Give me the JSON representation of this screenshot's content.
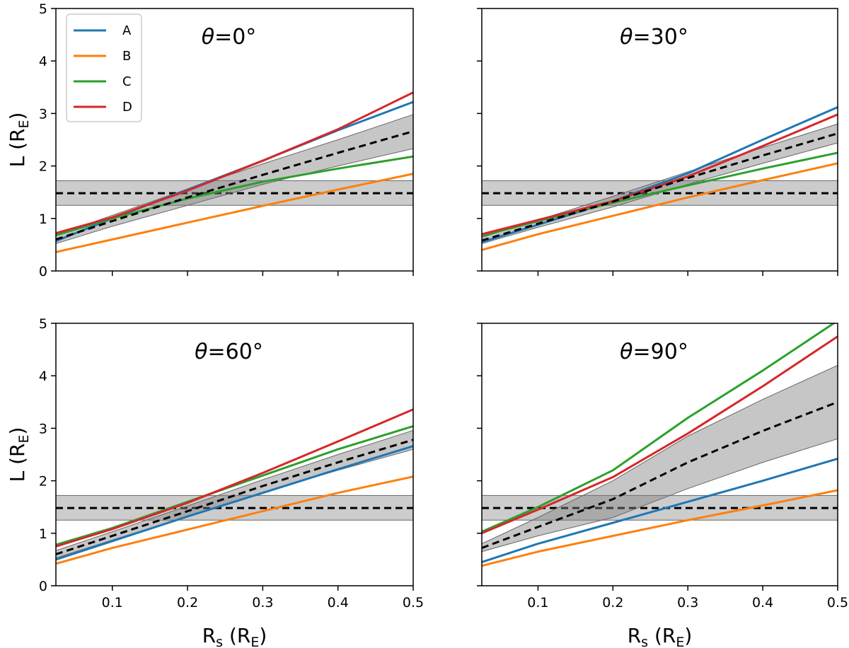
{
  "chart_data": {
    "type": "line",
    "xlabel": {
      "main": "R",
      "sub": "s",
      "unit_main": "R",
      "unit_sub": "E"
    },
    "ylabel": {
      "main": "L",
      "unit_main": "R",
      "unit_sub": "E"
    },
    "xlim": [
      0.025,
      0.5
    ],
    "ylim": [
      0,
      5
    ],
    "xticks": [
      0.1,
      0.2,
      0.3,
      0.4,
      0.5
    ],
    "xtick_labels": [
      "0.1",
      "0.2",
      "0.3",
      "0.4",
      "0.5"
    ],
    "yticks": [
      0,
      1,
      2,
      3,
      4,
      5
    ],
    "ytick_labels": [
      "0",
      "1",
      "2",
      "3",
      "4",
      "5"
    ],
    "grid": false,
    "legend": {
      "placement": "upper-left",
      "panel": 0
    },
    "series_styles": [
      {
        "name": "A",
        "color": "#1f77b4"
      },
      {
        "name": "B",
        "color": "#ff7f0e"
      },
      {
        "name": "C",
        "color": "#2ca02c"
      },
      {
        "name": "D",
        "color": "#d62728"
      }
    ],
    "reference": {
      "value": 1.48,
      "band": [
        1.25,
        1.72
      ],
      "style": "dashed",
      "color": "#000000",
      "band_color": "#808080"
    },
    "panels": [
      {
        "title": {
          "symbol": "θ",
          "rest": "=0°"
        },
        "x": [
          0.025,
          0.1,
          0.2,
          0.3,
          0.4,
          0.5
        ],
        "series": [
          {
            "name": "A",
            "values": [
              0.57,
              1.0,
              1.55,
              2.1,
              2.68,
              3.22
            ]
          },
          {
            "name": "B",
            "values": [
              0.36,
              0.6,
              0.92,
              1.24,
              1.55,
              1.85
            ]
          },
          {
            "name": "C",
            "values": [
              0.68,
              1.0,
              1.38,
              1.7,
              1.95,
              2.18
            ]
          },
          {
            "name": "D",
            "values": [
              0.72,
              1.02,
              1.53,
              2.1,
              2.7,
              3.4
            ]
          }
        ],
        "mean": [
          0.6,
          0.95,
          1.4,
          1.83,
          2.25,
          2.66
        ],
        "band_low": [
          0.52,
          0.85,
          1.25,
          1.65,
          2.0,
          2.33
        ],
        "band_high": [
          0.68,
          1.06,
          1.56,
          2.04,
          2.5,
          2.98
        ]
      },
      {
        "title": {
          "symbol": "θ",
          "rest": "=30°"
        },
        "x": [
          0.025,
          0.1,
          0.2,
          0.3,
          0.4,
          0.5
        ],
        "series": [
          {
            "name": "A",
            "values": [
              0.55,
              0.88,
              1.33,
              1.86,
              2.5,
              3.12
            ]
          },
          {
            "name": "B",
            "values": [
              0.4,
              0.7,
              1.05,
              1.4,
              1.73,
              2.05
            ]
          },
          {
            "name": "C",
            "values": [
              0.67,
              0.95,
              1.3,
              1.63,
              1.95,
              2.25
            ]
          },
          {
            "name": "D",
            "values": [
              0.7,
              0.97,
              1.33,
              1.8,
              2.38,
              2.98
            ]
          }
        ],
        "mean": [
          0.58,
          0.9,
          1.32,
          1.77,
          2.2,
          2.62
        ],
        "band_low": [
          0.52,
          0.83,
          1.22,
          1.65,
          2.05,
          2.44
        ],
        "band_high": [
          0.64,
          0.97,
          1.42,
          1.89,
          2.35,
          2.8
        ]
      },
      {
        "title": {
          "symbol": "θ",
          "rest": "=60°"
        },
        "x": [
          0.025,
          0.1,
          0.2,
          0.3,
          0.4,
          0.5
        ],
        "series": [
          {
            "name": "A",
            "values": [
              0.5,
              0.85,
              1.32,
              1.77,
              2.22,
              2.66
            ]
          },
          {
            "name": "B",
            "values": [
              0.42,
              0.72,
              1.07,
              1.42,
              1.77,
              2.08
            ]
          },
          {
            "name": "C",
            "values": [
              0.78,
              1.1,
              1.6,
              2.1,
              2.6,
              3.04
            ]
          },
          {
            "name": "D",
            "values": [
              0.75,
              1.08,
              1.58,
              2.15,
              2.75,
              3.36
            ]
          }
        ],
        "mean": [
          0.6,
          0.95,
          1.42,
          1.9,
          2.35,
          2.78
        ],
        "band_low": [
          0.53,
          0.87,
          1.32,
          1.78,
          2.2,
          2.6
        ],
        "band_high": [
          0.67,
          1.03,
          1.52,
          2.02,
          2.5,
          2.96
        ]
      },
      {
        "title": {
          "symbol": "θ",
          "rest": "=90°"
        },
        "x": [
          0.025,
          0.1,
          0.2,
          0.3,
          0.4,
          0.5
        ],
        "series": [
          {
            "name": "A",
            "values": [
              0.45,
              0.8,
              1.2,
              1.6,
              2.0,
              2.42
            ]
          },
          {
            "name": "B",
            "values": [
              0.38,
              0.65,
              0.95,
              1.25,
              1.53,
              1.82
            ]
          },
          {
            "name": "C",
            "values": [
              1.03,
              1.5,
              2.2,
              3.2,
              4.1,
              5.05
            ]
          },
          {
            "name": "D",
            "values": [
              1.0,
              1.45,
              2.07,
              2.9,
              3.8,
              4.75
            ]
          }
        ],
        "mean": [
          0.72,
          1.12,
          1.65,
          2.35,
          2.95,
          3.5
        ],
        "band_low": [
          0.65,
          0.95,
          1.3,
          1.85,
          2.35,
          2.8
        ],
        "band_high": [
          0.8,
          1.3,
          2.0,
          2.85,
          3.55,
          4.2
        ]
      }
    ]
  }
}
